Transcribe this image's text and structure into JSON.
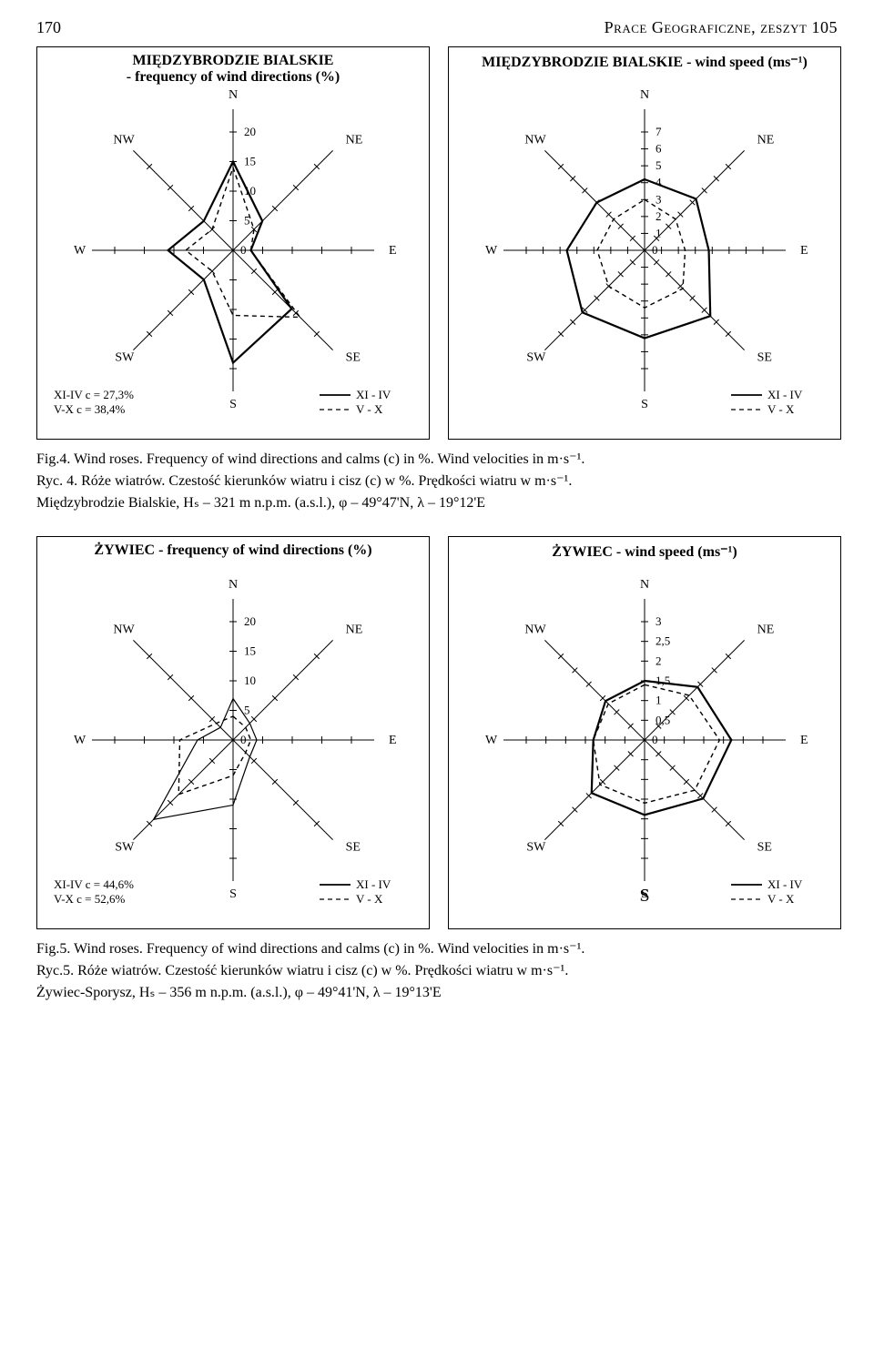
{
  "header": {
    "page_number": "170",
    "journal": "Prace Geograficzne, zeszyt 105"
  },
  "directions": [
    "N",
    "NE",
    "E",
    "SE",
    "S",
    "SW",
    "W",
    "NW"
  ],
  "legend": {
    "solid_label": "XI - IV",
    "dashed_label": "V - X"
  },
  "charts": {
    "mb_freq": {
      "title": "MIĘDZYBRODZIE BIALSKIE\n- frequency of wind directions (%)",
      "rings": [
        5,
        10,
        15,
        20
      ],
      "max": 20,
      "solid": [
        15,
        7,
        3,
        14,
        19,
        7,
        11,
        7
      ],
      "dashed": [
        14,
        5,
        3,
        16,
        11,
        5,
        8,
        5
      ],
      "calm_labels": [
        "XI-IV  c = 27,3%",
        "V-X  c = 38,4%"
      ]
    },
    "mb_speed": {
      "title": "MIĘDZYBRODZIE BIALSKIE - wind speed (ms⁻¹)",
      "rings": [
        1,
        2,
        3,
        4,
        5,
        6,
        7
      ],
      "max": 7,
      "solid": [
        4.2,
        4.3,
        3.8,
        5.5,
        5.2,
        5.2,
        4.6,
        4.0
      ],
      "dashed": [
        3.0,
        2.6,
        2.4,
        3.2,
        3.4,
        3.0,
        2.8,
        2.6
      ],
      "calm_labels": []
    },
    "zy_freq": {
      "title": "ŻYWIEC - frequency of wind directions (%)",
      "rings": [
        5,
        10,
        15,
        20
      ],
      "max": 20,
      "solid": [
        7,
        4,
        4,
        4,
        11,
        19,
        6,
        3
      ],
      "dashed": [
        4,
        3,
        3,
        3,
        6,
        13,
        9,
        4
      ],
      "calm_labels": [
        "XI-IV  c = 44,6%",
        "V-X  c = 52,6%"
      ]
    },
    "zy_speed": {
      "title": "ŻYWIEC - wind speed (ms⁻¹)",
      "rings": [
        0.5,
        1,
        1.5,
        2,
        2.5,
        3
      ],
      "max": 3,
      "ring_labels": [
        "0,5",
        "1",
        "1,5",
        "2",
        "2,5",
        "3"
      ],
      "solid": [
        1.5,
        1.9,
        2.2,
        2.1,
        1.9,
        1.9,
        1.3,
        1.4
      ],
      "dashed": [
        1.4,
        1.6,
        1.9,
        1.8,
        1.6,
        1.6,
        1.3,
        1.3
      ],
      "calm_labels": []
    }
  },
  "captions": {
    "fig4": {
      "line1": "Fig.4. Wind roses. Frequency of wind directions and calms (c) in %. Wind velocities in m·s⁻¹.",
      "line2": "Ryc. 4. Róże wiatrów. Czestość kierunków wiatru i cisz (c) w %. Prędkości wiatru w m·s⁻¹.",
      "line3": "Międzybrodzie Bialskie, Hₛ – 321 m n.p.m. (a.s.l.),  φ – 49°47'N,  λ – 19°12'E"
    },
    "fig5": {
      "line1": "Fig.5. Wind roses. Frequency of wind directions and calms (c) in %. Wind velocities in m·s⁻¹.",
      "line2": "Ryc.5. Róże wiatrów. Czestość kierunków wiatru i cisz (c) w %. Prędkości wiatru w m·s⁻¹.",
      "line3": "Żywiec-Sporysz, Hₛ – 356 m n.p.m. (a.s.l.),  φ – 49°41'N,  λ – 19°13'E"
    }
  },
  "style": {
    "axis_color": "#000000",
    "tick_color": "#000000",
    "solid_color": "#000000",
    "dashed_color": "#000000",
    "bg": "#ffffff",
    "label_fontsize": 14,
    "title_fontsize": 16,
    "solid_width": 2.2,
    "thin_width": 1,
    "dash_pattern": "5,4"
  }
}
